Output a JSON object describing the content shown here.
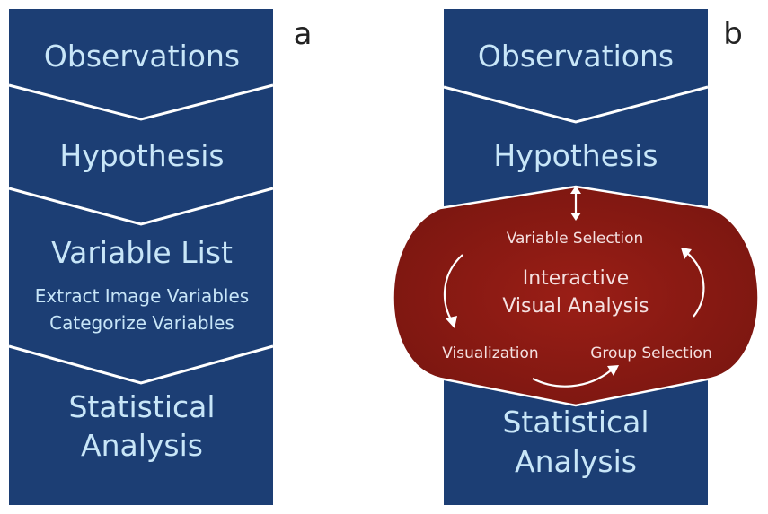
{
  "panel_a": {
    "letter": "a",
    "steps": {
      "observations": "Observations",
      "hypothesis": "Hypothesis",
      "variable_list": "Variable List",
      "extract": "Extract Image Variables",
      "categorize": "Categorize Variables",
      "statistical_1": "Statistical",
      "statistical_2": "Analysis"
    }
  },
  "panel_b": {
    "letter": "b",
    "steps": {
      "observations": "Observations",
      "hypothesis": "Hypothesis",
      "statistical_1": "Statistical",
      "statistical_2": "Analysis"
    },
    "loop": {
      "title_1": "Interactive",
      "title_2": "Visual Analysis",
      "variable_selection": "Variable Selection",
      "visualization": "Visualization",
      "group_selection": "Group Selection"
    }
  },
  "colors": {
    "panel_blue": "#1c3e74",
    "loop_red": "#8c1a14",
    "label_text": "#c8e6f8"
  }
}
